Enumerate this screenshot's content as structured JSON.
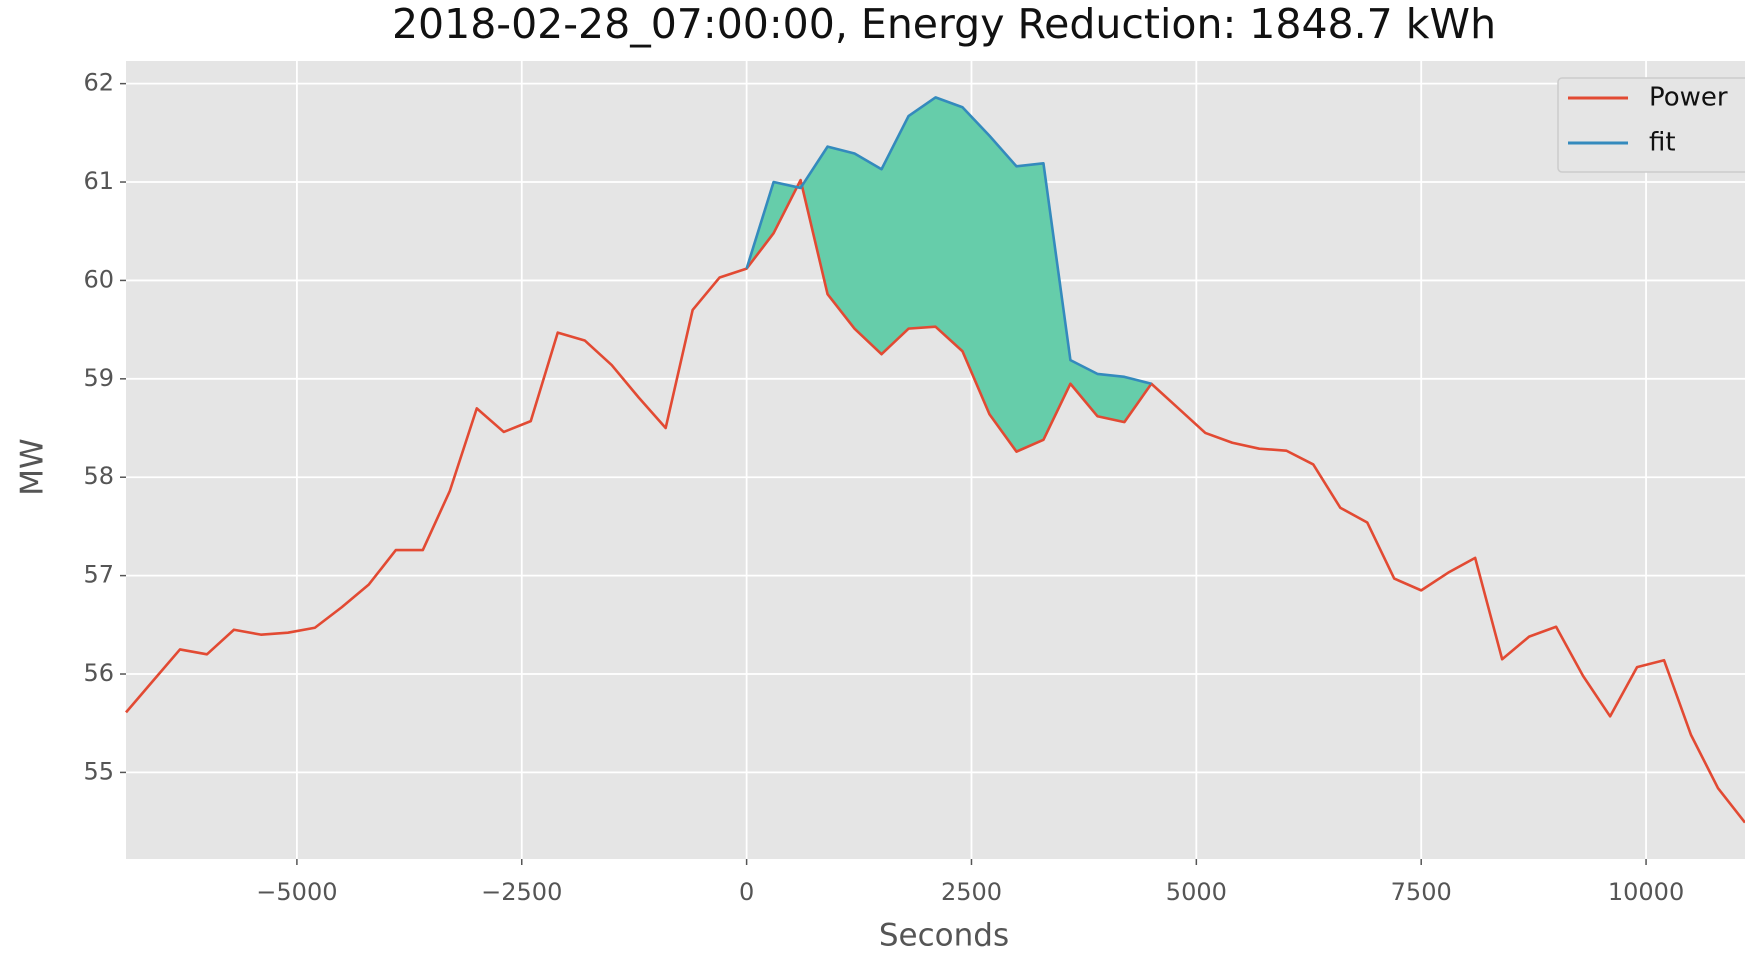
{
  "chart_data": {
    "type": "line",
    "title": "2018-02-28_07:00:00, Energy Reduction: 1848.7 kWh",
    "x_label": "Seconds",
    "y_label": "MW",
    "x": [
      -6900,
      -6600,
      -6300,
      -6000,
      -5700,
      -5400,
      -5100,
      -4800,
      -4500,
      -4200,
      -3900,
      -3600,
      -3300,
      -3000,
      -2700,
      -2400,
      -2100,
      -1800,
      -1500,
      -1200,
      -900,
      -600,
      -300,
      0,
      300,
      600,
      900,
      1200,
      1500,
      1800,
      2100,
      2400,
      2700,
      3000,
      3300,
      3600,
      3900,
      4200,
      4500,
      4800,
      5100,
      5400,
      5700,
      6000,
      6300,
      6600,
      6900,
      7200,
      7500,
      7800,
      8100,
      8400,
      8700,
      9000,
      9300,
      9600,
      9900,
      10200,
      10500,
      10800,
      11100
    ],
    "series": [
      {
        "name": "Power",
        "color": "#E24A33",
        "values": [
          55.61,
          55.93,
          56.25,
          56.2,
          56.45,
          56.4,
          56.42,
          56.47,
          56.68,
          56.91,
          57.26,
          57.26,
          57.86,
          58.7,
          58.46,
          58.57,
          59.47,
          59.39,
          59.14,
          58.81,
          58.5,
          59.7,
          60.03,
          60.12,
          60.48,
          61.02,
          59.86,
          59.51,
          59.25,
          59.51,
          59.53,
          59.28,
          58.64,
          58.26,
          58.38,
          58.95,
          58.62,
          58.56,
          58.95,
          58.7,
          58.45,
          58.35,
          58.29,
          58.27,
          58.13,
          57.69,
          57.54,
          56.97,
          56.85,
          57.03,
          57.18,
          56.15,
          56.38,
          56.48,
          55.98,
          55.57,
          56.07,
          56.14,
          55.38,
          54.84,
          54.49
        ]
      },
      {
        "name": "fit",
        "color": "#348ABD",
        "values": [
          null,
          null,
          null,
          null,
          null,
          null,
          null,
          null,
          null,
          null,
          null,
          null,
          null,
          null,
          null,
          null,
          null,
          null,
          null,
          null,
          null,
          null,
          null,
          60.12,
          61.0,
          60.94,
          61.36,
          61.29,
          61.13,
          61.67,
          61.86,
          61.76,
          61.47,
          61.16,
          61.19,
          59.19,
          59.05,
          59.02,
          58.95,
          null,
          null,
          null,
          null,
          null,
          null,
          null,
          null,
          null,
          null,
          null,
          null,
          null,
          null,
          null,
          null,
          null,
          null,
          null,
          null,
          null,
          null
        ]
      }
    ],
    "fill_color": "#66CDAA",
    "background": "#E5E5E5",
    "grid": true,
    "legend": "upper right",
    "xlim": [
      -6900,
      11100
    ],
    "ylim": [
      54.12,
      62.23
    ],
    "xticks": [
      {
        "value": -5000,
        "label": "−5000"
      },
      {
        "value": -2500,
        "label": "−2500"
      },
      0,
      2500,
      5000,
      7500,
      10000
    ],
    "yticks": [
      55,
      56,
      57,
      58,
      59,
      60,
      61,
      62
    ]
  }
}
